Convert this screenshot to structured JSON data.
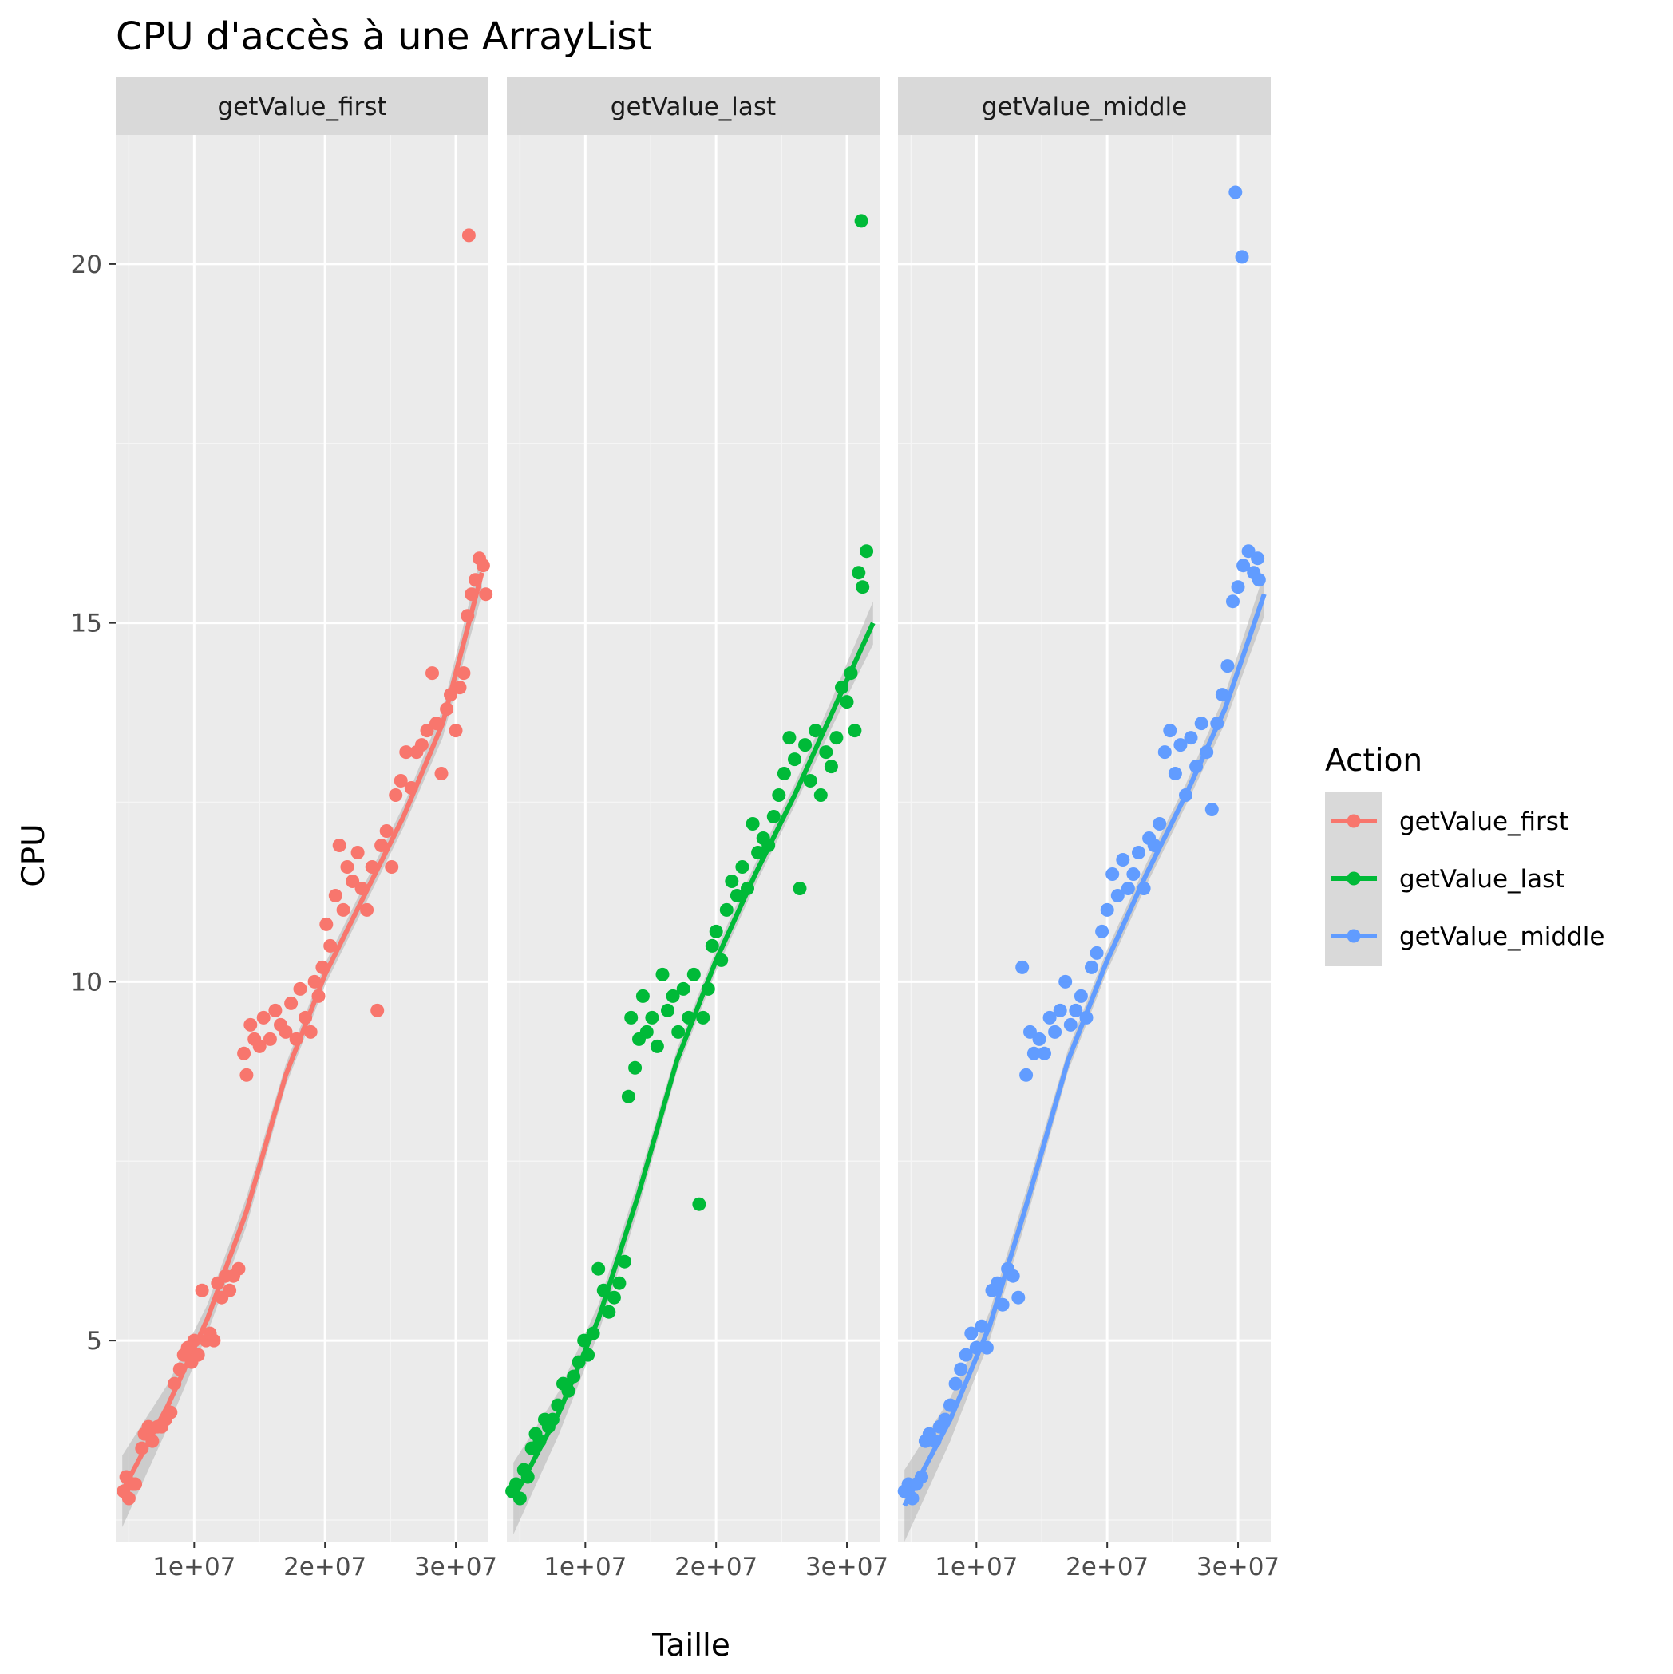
{
  "chart_data": {
    "type": "scatter",
    "title": "CPU d'accès à une ArrayList",
    "xlabel": "Taille",
    "ylabel": "CPU",
    "xlim": [
      4000000,
      32500000
    ],
    "ylim": [
      2.2,
      21.8
    ],
    "x_ticks": [
      10000000,
      20000000,
      30000000
    ],
    "x_tick_labels": [
      "1e+07",
      "2e+07",
      "3e+07"
    ],
    "y_ticks": [
      5,
      10,
      15,
      20
    ],
    "y_tick_labels": [
      "5",
      "10",
      "15",
      "20"
    ],
    "grid": true,
    "legend": {
      "title": "Action",
      "placement": "right"
    },
    "facets": [
      "getValue_first",
      "getValue_last",
      "getValue_middle"
    ],
    "colors": {
      "getValue_first": "#F8766D",
      "getValue_last": "#00BA38",
      "getValue_middle": "#619CFF"
    },
    "trend": {
      "x": [
        4500000,
        8000000,
        11000000,
        14000000,
        17000000,
        20000000,
        23000000,
        26000000,
        29000000,
        32000000
      ],
      "getValue_first": [
        2.9,
        4.1,
        5.3,
        6.8,
        8.7,
        10.1,
        11.2,
        12.3,
        13.6,
        15.7
      ],
      "getValue_last": [
        2.8,
        4.0,
        5.3,
        7.0,
        8.9,
        10.3,
        11.5,
        12.6,
        13.8,
        15.0
      ],
      "getValue_middle": [
        2.7,
        3.9,
        5.2,
        7.0,
        8.9,
        10.3,
        11.5,
        12.6,
        13.8,
        15.4
      ]
    },
    "band": {
      "getValue_first": [
        0.5,
        0.3,
        0.2,
        0.2,
        0.15,
        0.15,
        0.15,
        0.15,
        0.2,
        0.3
      ],
      "getValue_last": [
        0.5,
        0.3,
        0.2,
        0.2,
        0.15,
        0.15,
        0.15,
        0.15,
        0.2,
        0.3
      ],
      "getValue_middle": [
        0.5,
        0.3,
        0.2,
        0.2,
        0.15,
        0.15,
        0.15,
        0.15,
        0.2,
        0.3
      ]
    },
    "series": [
      {
        "name": "getValue_first",
        "points": [
          [
            4600000,
            2.9
          ],
          [
            4800000,
            3.1
          ],
          [
            5000000,
            2.8
          ],
          [
            5300000,
            3.0
          ],
          [
            5500000,
            3.0
          ],
          [
            6000000,
            3.5
          ],
          [
            6200000,
            3.7
          ],
          [
            6500000,
            3.8
          ],
          [
            6800000,
            3.6
          ],
          [
            7200000,
            3.8
          ],
          [
            7500000,
            3.8
          ],
          [
            7800000,
            3.9
          ],
          [
            8200000,
            4.0
          ],
          [
            8500000,
            4.4
          ],
          [
            8900000,
            4.6
          ],
          [
            9200000,
            4.8
          ],
          [
            9500000,
            4.9
          ],
          [
            9800000,
            4.7
          ],
          [
            10000000,
            5.0
          ],
          [
            10300000,
            4.8
          ],
          [
            10600000,
            5.7
          ],
          [
            10900000,
            5.0
          ],
          [
            11200000,
            5.1
          ],
          [
            11500000,
            5.0
          ],
          [
            11800000,
            5.8
          ],
          [
            12100000,
            5.6
          ],
          [
            12400000,
            5.9
          ],
          [
            12700000,
            5.7
          ],
          [
            13000000,
            5.9
          ],
          [
            13400000,
            6.0
          ],
          [
            13800000,
            9.0
          ],
          [
            14000000,
            8.7
          ],
          [
            14300000,
            9.4
          ],
          [
            14600000,
            9.2
          ],
          [
            15000000,
            9.1
          ],
          [
            15300000,
            9.5
          ],
          [
            15800000,
            9.2
          ],
          [
            16200000,
            9.6
          ],
          [
            16600000,
            9.4
          ],
          [
            17000000,
            9.3
          ],
          [
            17400000,
            9.7
          ],
          [
            17800000,
            9.2
          ],
          [
            18100000,
            9.9
          ],
          [
            18500000,
            9.5
          ],
          [
            18900000,
            9.3
          ],
          [
            19200000,
            10.0
          ],
          [
            19500000,
            9.8
          ],
          [
            19800000,
            10.2
          ],
          [
            20100000,
            10.8
          ],
          [
            20400000,
            10.5
          ],
          [
            20800000,
            11.2
          ],
          [
            21100000,
            11.9
          ],
          [
            21400000,
            11.0
          ],
          [
            21700000,
            11.6
          ],
          [
            22100000,
            11.4
          ],
          [
            22500000,
            11.8
          ],
          [
            22800000,
            11.3
          ],
          [
            23200000,
            11.0
          ],
          [
            23600000,
            11.6
          ],
          [
            24000000,
            9.6
          ],
          [
            24300000,
            11.9
          ],
          [
            24700000,
            12.1
          ],
          [
            25100000,
            11.6
          ],
          [
            25400000,
            12.6
          ],
          [
            25800000,
            12.8
          ],
          [
            26200000,
            13.2
          ],
          [
            26600000,
            12.7
          ],
          [
            27000000,
            13.2
          ],
          [
            27400000,
            13.3
          ],
          [
            27800000,
            13.5
          ],
          [
            28200000,
            14.3
          ],
          [
            28500000,
            13.6
          ],
          [
            28900000,
            12.9
          ],
          [
            29300000,
            13.8
          ],
          [
            29600000,
            14.0
          ],
          [
            30000000,
            13.5
          ],
          [
            30300000,
            14.1
          ],
          [
            30600000,
            14.3
          ],
          [
            30900000,
            15.1
          ],
          [
            31200000,
            15.4
          ],
          [
            31500000,
            15.6
          ],
          [
            31800000,
            15.9
          ],
          [
            32100000,
            15.8
          ],
          [
            32300000,
            15.4
          ],
          [
            31000000,
            20.4
          ]
        ]
      },
      {
        "name": "getValue_last",
        "points": [
          [
            4400000,
            2.9
          ],
          [
            4700000,
            3.0
          ],
          [
            5000000,
            2.8
          ],
          [
            5300000,
            3.2
          ],
          [
            5600000,
            3.1
          ],
          [
            5900000,
            3.5
          ],
          [
            6200000,
            3.7
          ],
          [
            6500000,
            3.6
          ],
          [
            6900000,
            3.9
          ],
          [
            7200000,
            3.8
          ],
          [
            7500000,
            3.9
          ],
          [
            7900000,
            4.1
          ],
          [
            8300000,
            4.4
          ],
          [
            8700000,
            4.3
          ],
          [
            9100000,
            4.5
          ],
          [
            9500000,
            4.7
          ],
          [
            9900000,
            5.0
          ],
          [
            10200000,
            4.8
          ],
          [
            10600000,
            5.1
          ],
          [
            11000000,
            6.0
          ],
          [
            11400000,
            5.7
          ],
          [
            11800000,
            5.4
          ],
          [
            12200000,
            5.6
          ],
          [
            12600000,
            5.8
          ],
          [
            13000000,
            6.1
          ],
          [
            13300000,
            8.4
          ],
          [
            13500000,
            9.5
          ],
          [
            13800000,
            8.8
          ],
          [
            14100000,
            9.2
          ],
          [
            14400000,
            9.8
          ],
          [
            14700000,
            9.3
          ],
          [
            15100000,
            9.5
          ],
          [
            15500000,
            9.1
          ],
          [
            15900000,
            10.1
          ],
          [
            16300000,
            9.6
          ],
          [
            16700000,
            9.8
          ],
          [
            17100000,
            9.3
          ],
          [
            17500000,
            9.9
          ],
          [
            17900000,
            9.5
          ],
          [
            18300000,
            10.1
          ],
          [
            18700000,
            6.9
          ],
          [
            19000000,
            9.5
          ],
          [
            19400000,
            9.9
          ],
          [
            19700000,
            10.5
          ],
          [
            20000000,
            10.7
          ],
          [
            20400000,
            10.3
          ],
          [
            20800000,
            11.0
          ],
          [
            21200000,
            11.4
          ],
          [
            21600000,
            11.2
          ],
          [
            22000000,
            11.6
          ],
          [
            22400000,
            11.3
          ],
          [
            22800000,
            12.2
          ],
          [
            23200000,
            11.8
          ],
          [
            23600000,
            12.0
          ],
          [
            24000000,
            11.9
          ],
          [
            24400000,
            12.3
          ],
          [
            24800000,
            12.6
          ],
          [
            25200000,
            12.9
          ],
          [
            25600000,
            13.4
          ],
          [
            26000000,
            13.1
          ],
          [
            26400000,
            11.3
          ],
          [
            26800000,
            13.3
          ],
          [
            27200000,
            12.8
          ],
          [
            27600000,
            13.5
          ],
          [
            28000000,
            12.6
          ],
          [
            28400000,
            13.2
          ],
          [
            28800000,
            13.0
          ],
          [
            29200000,
            13.4
          ],
          [
            29600000,
            14.1
          ],
          [
            30000000,
            13.9
          ],
          [
            30300000,
            14.3
          ],
          [
            30600000,
            13.5
          ],
          [
            30900000,
            15.7
          ],
          [
            31200000,
            15.5
          ],
          [
            31500000,
            16.0
          ],
          [
            31100000,
            20.6
          ]
        ]
      },
      {
        "name": "getValue_middle",
        "points": [
          [
            4500000,
            2.9
          ],
          [
            4800000,
            3.0
          ],
          [
            5100000,
            2.8
          ],
          [
            5400000,
            3.0
          ],
          [
            5800000,
            3.1
          ],
          [
            6100000,
            3.6
          ],
          [
            6400000,
            3.7
          ],
          [
            6800000,
            3.6
          ],
          [
            7200000,
            3.8
          ],
          [
            7600000,
            3.9
          ],
          [
            8000000,
            4.1
          ],
          [
            8400000,
            4.4
          ],
          [
            8800000,
            4.6
          ],
          [
            9200000,
            4.8
          ],
          [
            9600000,
            5.1
          ],
          [
            10000000,
            4.9
          ],
          [
            10400000,
            5.2
          ],
          [
            10800000,
            4.9
          ],
          [
            11200000,
            5.7
          ],
          [
            11600000,
            5.8
          ],
          [
            12000000,
            5.5
          ],
          [
            12400000,
            6.0
          ],
          [
            12800000,
            5.9
          ],
          [
            13200000,
            5.6
          ],
          [
            13500000,
            10.2
          ],
          [
            13800000,
            8.7
          ],
          [
            14100000,
            9.3
          ],
          [
            14400000,
            9.0
          ],
          [
            14800000,
            9.2
          ],
          [
            15200000,
            9.0
          ],
          [
            15600000,
            9.5
          ],
          [
            16000000,
            9.3
          ],
          [
            16400000,
            9.6
          ],
          [
            16800000,
            10.0
          ],
          [
            17200000,
            9.4
          ],
          [
            17600000,
            9.6
          ],
          [
            18000000,
            9.8
          ],
          [
            18400000,
            9.5
          ],
          [
            18800000,
            10.2
          ],
          [
            19200000,
            10.4
          ],
          [
            19600000,
            10.7
          ],
          [
            20000000,
            11.0
          ],
          [
            20400000,
            11.5
          ],
          [
            20800000,
            11.2
          ],
          [
            21200000,
            11.7
          ],
          [
            21600000,
            11.3
          ],
          [
            22000000,
            11.5
          ],
          [
            22400000,
            11.8
          ],
          [
            22800000,
            11.3
          ],
          [
            23200000,
            12.0
          ],
          [
            23600000,
            11.9
          ],
          [
            24000000,
            12.2
          ],
          [
            24400000,
            13.2
          ],
          [
            24800000,
            13.5
          ],
          [
            25200000,
            12.9
          ],
          [
            25600000,
            13.3
          ],
          [
            26000000,
            12.6
          ],
          [
            26400000,
            13.4
          ],
          [
            26800000,
            13.0
          ],
          [
            27200000,
            13.6
          ],
          [
            27600000,
            13.2
          ],
          [
            28000000,
            12.4
          ],
          [
            28400000,
            13.6
          ],
          [
            28800000,
            14.0
          ],
          [
            29200000,
            14.4
          ],
          [
            29600000,
            15.3
          ],
          [
            30000000,
            15.5
          ],
          [
            30400000,
            15.8
          ],
          [
            30800000,
            16.0
          ],
          [
            31200000,
            15.7
          ],
          [
            31500000,
            15.9
          ],
          [
            31600000,
            15.6
          ],
          [
            29800000,
            21.0
          ],
          [
            30300000,
            20.1
          ]
        ]
      }
    ]
  }
}
